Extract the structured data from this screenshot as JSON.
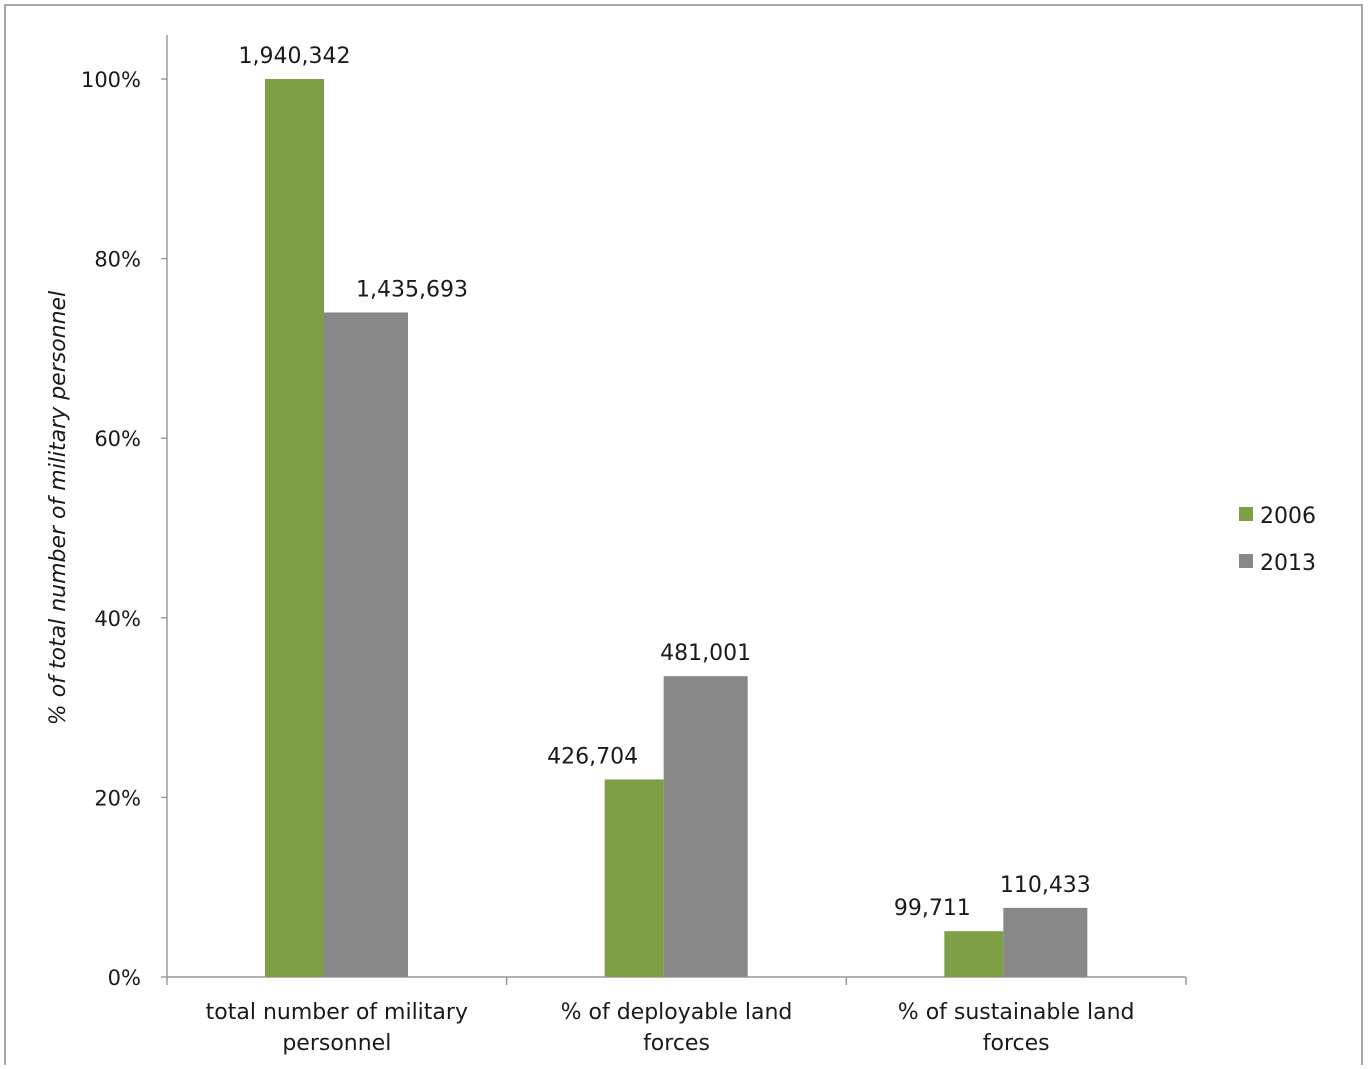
{
  "chart_data": {
    "type": "bar",
    "title": "",
    "xlabel": "",
    "ylabel": "% of total number of military personnel",
    "ylim": [
      0,
      1
    ],
    "y_tick_values": [
      0,
      0.2,
      0.4,
      0.6,
      0.8,
      1.0
    ],
    "y_tick_labels": [
      "0%",
      "20%",
      "40%",
      "60%",
      "80%",
      "100%"
    ],
    "categories": [
      [
        "total number of military",
        "personnel"
      ],
      [
        "% of deployable land",
        "forces"
      ],
      [
        "% of sustainable land",
        "forces"
      ]
    ],
    "series": [
      {
        "name": "2006",
        "color": "#7f9f47",
        "values": [
          1.0,
          0.22,
          0.051
        ],
        "labels": [
          "1,940,342",
          "426,704",
          "99,711"
        ]
      },
      {
        "name": "2013",
        "color": "#888888",
        "values": [
          0.74,
          0.335,
          0.077
        ],
        "labels": [
          "1,435,693",
          "481,001",
          "110,433"
        ]
      }
    ],
    "grid": false,
    "legend_position": "right"
  }
}
